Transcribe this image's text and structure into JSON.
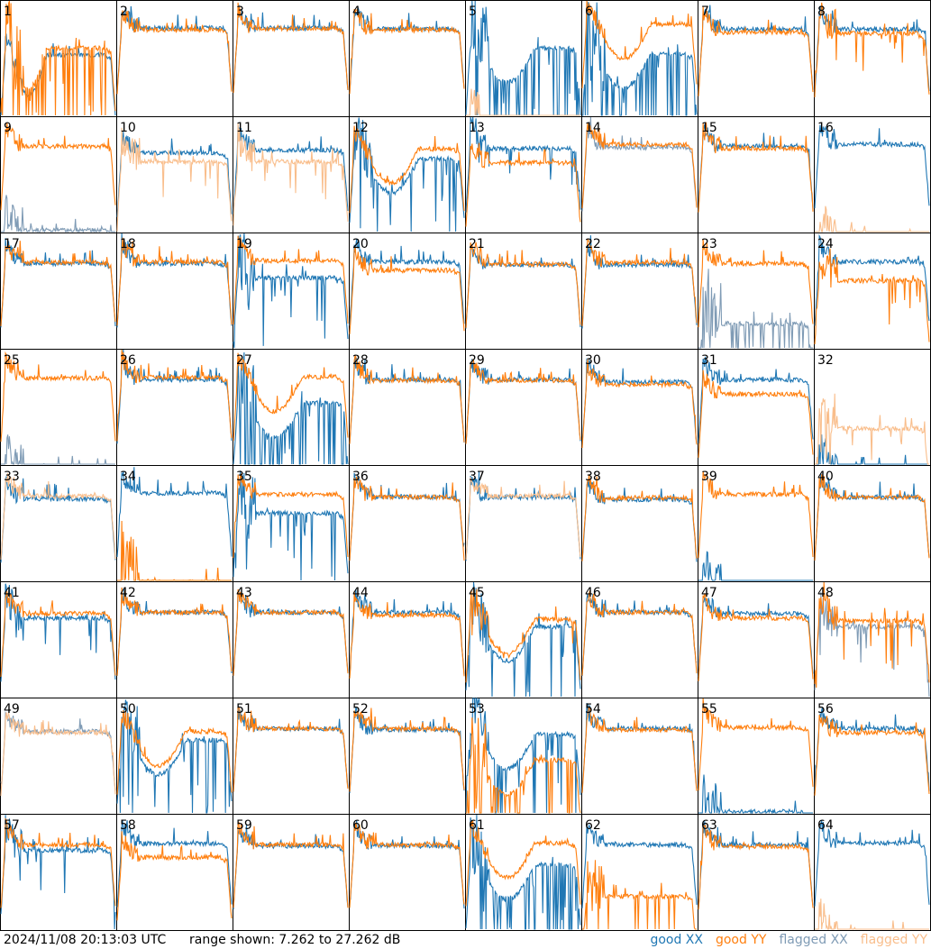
{
  "timestamp": "2024/11/08 20:13:03 UTC",
  "range_text": "range shown: 7.262 to 27.262 dB",
  "legend": {
    "good_xx": "good XX",
    "good_yy": "good YY",
    "flagged_xx": "flagged XX",
    "flagged_yy": "flagged YY"
  },
  "colors": {
    "good_xx": "#1f77b4",
    "good_yy": "#ff7f0e",
    "flagged_xx": "#7f9bb5",
    "flagged_yy": "#f9be8c"
  },
  "chart_data": {
    "type": "line",
    "grid": "8x8 small multiples",
    "ylim": [
      7.262,
      27.262
    ],
    "yunit": "dB",
    "series_names": [
      "good XX",
      "good YY",
      "flagged XX",
      "flagged YY"
    ],
    "panels": [
      {
        "label": "1",
        "shape": "a",
        "x": {
          "s": "good",
          "b": 18.8,
          "f": 0
        },
        "y": {
          "s": "good",
          "b": 20.0,
          "f": 3
        }
      },
      {
        "label": "2",
        "shape": "n",
        "x": {
          "s": "good",
          "b": 23.5,
          "f": 0
        },
        "y": {
          "s": "good",
          "b": 23.2,
          "f": 0
        }
      },
      {
        "label": "3",
        "shape": "n",
        "x": {
          "s": "good",
          "b": 23.5,
          "f": 0
        },
        "y": {
          "s": "good",
          "b": 23.4,
          "f": 0
        }
      },
      {
        "label": "4",
        "shape": "n",
        "x": {
          "s": "good",
          "b": 23.4,
          "f": 0
        },
        "y": {
          "s": "good",
          "b": 23.2,
          "f": 0
        }
      },
      {
        "label": "5",
        "shape": "b",
        "x": {
          "s": "good",
          "b": 20.0,
          "f": 4
        },
        "y": {
          "s": "flagged",
          "b": 7.8,
          "f": 1
        }
      },
      {
        "label": "6",
        "shape": "b",
        "x": {
          "s": "good",
          "b": 19.0,
          "f": 4
        },
        "y": {
          "s": "good",
          "b": 24.2,
          "f": 0
        }
      },
      {
        "label": "7",
        "shape": "n",
        "x": {
          "s": "good",
          "b": 23.3,
          "f": 0
        },
        "y": {
          "s": "good",
          "b": 22.8,
          "f": 0
        }
      },
      {
        "label": "8",
        "shape": "n",
        "x": {
          "s": "good",
          "b": 23.3,
          "f": 0
        },
        "y": {
          "s": "good",
          "b": 22.6,
          "f": 1
        }
      },
      {
        "label": "9",
        "shape": "n",
        "x": {
          "s": "flagged",
          "b": 8.5,
          "f": 1
        },
        "y": {
          "s": "good",
          "b": 23.2,
          "f": 0
        }
      },
      {
        "label": "10",
        "shape": "n",
        "x": {
          "s": "good",
          "b": 22.0,
          "f": 0
        },
        "y": {
          "s": "flagged",
          "b": 20.5,
          "f": 1
        }
      },
      {
        "label": "11",
        "shape": "n",
        "x": {
          "s": "good",
          "b": 22.5,
          "f": 0
        },
        "y": {
          "s": "flagged",
          "b": 20.5,
          "f": 1
        }
      },
      {
        "label": "12",
        "shape": "b",
        "x": {
          "s": "good",
          "b": 21.0,
          "f": 2
        },
        "y": {
          "s": "good",
          "b": 22.7,
          "f": 0
        }
      },
      {
        "label": "13",
        "shape": "n",
        "x": {
          "s": "good",
          "b": 22.8,
          "f": 1
        },
        "y": {
          "s": "good",
          "b": 20.3,
          "f": 0
        }
      },
      {
        "label": "14",
        "shape": "n",
        "x": {
          "s": "flagged",
          "b": 23.0,
          "f": 0
        },
        "y": {
          "s": "good",
          "b": 23.5,
          "f": 0
        }
      },
      {
        "label": "15",
        "shape": "n",
        "x": {
          "s": "good",
          "b": 23.2,
          "f": 0
        },
        "y": {
          "s": "good",
          "b": 22.8,
          "f": 0
        }
      },
      {
        "label": "16",
        "shape": "n",
        "x": {
          "s": "good",
          "b": 23.5,
          "f": 0
        },
        "y": {
          "s": "flagged",
          "b": 7.4,
          "f": 1
        }
      },
      {
        "label": "17",
        "shape": "n",
        "x": {
          "s": "good",
          "b": 23.0,
          "f": 0
        },
        "y": {
          "s": "good",
          "b": 23.2,
          "f": 0
        }
      },
      {
        "label": "18",
        "shape": "n",
        "x": {
          "s": "good",
          "b": 23.0,
          "f": 0
        },
        "y": {
          "s": "good",
          "b": 23.3,
          "f": 0
        }
      },
      {
        "label": "19",
        "shape": "n",
        "x": {
          "s": "good",
          "b": 20.5,
          "f": 2
        },
        "y": {
          "s": "good",
          "b": 23.5,
          "f": 0
        }
      },
      {
        "label": "20",
        "shape": "n",
        "x": {
          "s": "good",
          "b": 23.3,
          "f": 0
        },
        "y": {
          "s": "good",
          "b": 21.8,
          "f": 0
        }
      },
      {
        "label": "21",
        "shape": "n",
        "x": {
          "s": "good",
          "b": 22.8,
          "f": 0
        },
        "y": {
          "s": "good",
          "b": 22.9,
          "f": 0
        }
      },
      {
        "label": "22",
        "shape": "n",
        "x": {
          "s": "good",
          "b": 22.8,
          "f": 0
        },
        "y": {
          "s": "good",
          "b": 23.2,
          "f": 0
        }
      },
      {
        "label": "23",
        "shape": "n",
        "x": {
          "s": "flagged",
          "b": 12.5,
          "f": 3
        },
        "y": {
          "s": "good",
          "b": 23.0,
          "f": 0
        }
      },
      {
        "label": "24",
        "shape": "n",
        "x": {
          "s": "good",
          "b": 23.3,
          "f": 0
        },
        "y": {
          "s": "good",
          "b": 20.0,
          "f": 1
        }
      },
      {
        "label": "25",
        "shape": "n",
        "x": {
          "s": "flagged",
          "b": 7.6,
          "f": 1
        },
        "y": {
          "s": "good",
          "b": 23.3,
          "f": 0
        }
      },
      {
        "label": "26",
        "shape": "n",
        "x": {
          "s": "good",
          "b": 23.0,
          "f": 0
        },
        "y": {
          "s": "good",
          "b": 23.4,
          "f": 0
        }
      },
      {
        "label": "27",
        "shape": "b",
        "x": {
          "s": "good",
          "b": 19.0,
          "f": 4
        },
        "y": {
          "s": "good",
          "b": 23.5,
          "f": 0
        }
      },
      {
        "label": "28",
        "shape": "n",
        "x": {
          "s": "good",
          "b": 23.0,
          "f": 0
        },
        "y": {
          "s": "good",
          "b": 22.9,
          "f": 0
        }
      },
      {
        "label": "29",
        "shape": "n",
        "x": {
          "s": "good",
          "b": 23.0,
          "f": 0
        },
        "y": {
          "s": "good",
          "b": 22.9,
          "f": 0
        }
      },
      {
        "label": "30",
        "shape": "n",
        "x": {
          "s": "good",
          "b": 22.6,
          "f": 0
        },
        "y": {
          "s": "good",
          "b": 22.2,
          "f": 0
        }
      },
      {
        "label": "31",
        "shape": "n",
        "x": {
          "s": "good",
          "b": 23.0,
          "f": 0
        },
        "y": {
          "s": "good",
          "b": 20.5,
          "f": 0
        }
      },
      {
        "label": "32",
        "shape": "n",
        "x": {
          "s": "good",
          "b": 7.6,
          "f": 1
        },
        "y": {
          "s": "flagged",
          "b": 14.5,
          "f": 1
        }
      },
      {
        "label": "33",
        "shape": "n",
        "x": {
          "s": "good",
          "b": 22.5,
          "f": 0
        },
        "y": {
          "s": "flagged",
          "b": 23.0,
          "f": 0
        }
      },
      {
        "label": "34",
        "shape": "n",
        "x": {
          "s": "good",
          "b": 23.5,
          "f": 0
        },
        "y": {
          "s": "good",
          "b": 8.0,
          "f": 3
        }
      },
      {
        "label": "35",
        "shape": "n",
        "x": {
          "s": "good",
          "b": 20.0,
          "f": 2
        },
        "y": {
          "s": "good",
          "b": 23.3,
          "f": 0
        }
      },
      {
        "label": "36",
        "shape": "n",
        "x": {
          "s": "good",
          "b": 22.8,
          "f": 0
        },
        "y": {
          "s": "good",
          "b": 22.8,
          "f": 0
        }
      },
      {
        "label": "37",
        "shape": "n",
        "x": {
          "s": "good",
          "b": 22.8,
          "f": 0
        },
        "y": {
          "s": "flagged",
          "b": 23.0,
          "f": 0
        }
      },
      {
        "label": "38",
        "shape": "n",
        "x": {
          "s": "good",
          "b": 22.4,
          "f": 0
        },
        "y": {
          "s": "good",
          "b": 22.7,
          "f": 0
        }
      },
      {
        "label": "39",
        "shape": "n",
        "x": {
          "s": "good",
          "b": 7.6,
          "f": 1
        },
        "y": {
          "s": "good",
          "b": 23.3,
          "f": 0
        }
      },
      {
        "label": "40",
        "shape": "n",
        "x": {
          "s": "good",
          "b": 22.8,
          "f": 0
        },
        "y": {
          "s": "good",
          "b": 22.8,
          "f": 0
        }
      },
      {
        "label": "41",
        "shape": "n",
        "x": {
          "s": "good",
          "b": 22.0,
          "f": 1
        },
        "y": {
          "s": "good",
          "b": 22.8,
          "f": 0
        }
      },
      {
        "label": "42",
        "shape": "n",
        "x": {
          "s": "good",
          "b": 23.0,
          "f": 0
        },
        "y": {
          "s": "good",
          "b": 23.0,
          "f": 0
        }
      },
      {
        "label": "43",
        "shape": "n",
        "x": {
          "s": "good",
          "b": 23.0,
          "f": 0
        },
        "y": {
          "s": "good",
          "b": 23.0,
          "f": 0
        }
      },
      {
        "label": "44",
        "shape": "n",
        "x": {
          "s": "good",
          "b": 23.0,
          "f": 0
        },
        "y": {
          "s": "good",
          "b": 22.5,
          "f": 0
        }
      },
      {
        "label": "45",
        "shape": "b",
        "x": {
          "s": "good",
          "b": 20.5,
          "f": 2
        },
        "y": {
          "s": "good",
          "b": 21.8,
          "f": 1
        }
      },
      {
        "label": "46",
        "shape": "n",
        "x": {
          "s": "good",
          "b": 23.0,
          "f": 0
        },
        "y": {
          "s": "good",
          "b": 23.0,
          "f": 0
        }
      },
      {
        "label": "47",
        "shape": "n",
        "x": {
          "s": "good",
          "b": 22.8,
          "f": 0
        },
        "y": {
          "s": "good",
          "b": 22.0,
          "f": 0
        }
      },
      {
        "label": "48",
        "shape": "n",
        "x": {
          "s": "flagged",
          "b": 20.5,
          "f": 1
        },
        "y": {
          "s": "good",
          "b": 21.5,
          "f": 1
        }
      },
      {
        "label": "49",
        "shape": "n",
        "x": {
          "s": "flagged",
          "b": 22.5,
          "f": 0
        },
        "y": {
          "s": "flagged",
          "b": 22.3,
          "f": 0
        }
      },
      {
        "label": "50",
        "shape": "b",
        "x": {
          "s": "good",
          "b": 21.0,
          "f": 2
        },
        "y": {
          "s": "good",
          "b": 22.5,
          "f": 0
        }
      },
      {
        "label": "51",
        "shape": "n",
        "x": {
          "s": "good",
          "b": 23.0,
          "f": 0
        },
        "y": {
          "s": "good",
          "b": 23.0,
          "f": 0
        }
      },
      {
        "label": "52",
        "shape": "n",
        "x": {
          "s": "good",
          "b": 22.8,
          "f": 0
        },
        "y": {
          "s": "good",
          "b": 23.0,
          "f": 0
        }
      },
      {
        "label": "53",
        "shape": "b",
        "x": {
          "s": "good",
          "b": 22.0,
          "f": 3
        },
        "y": {
          "s": "good",
          "b": 17.5,
          "f": 3
        }
      },
      {
        "label": "54",
        "shape": "n",
        "x": {
          "s": "good",
          "b": 23.0,
          "f": 0
        },
        "y": {
          "s": "good",
          "b": 22.8,
          "f": 0
        }
      },
      {
        "label": "55",
        "shape": "n",
        "x": {
          "s": "good",
          "b": 8.5,
          "f": 2
        },
        "y": {
          "s": "good",
          "b": 23.2,
          "f": 0
        }
      },
      {
        "label": "56",
        "shape": "n",
        "x": {
          "s": "good",
          "b": 23.0,
          "f": 0
        },
        "y": {
          "s": "good",
          "b": 22.3,
          "f": 0
        }
      },
      {
        "label": "57",
        "shape": "n",
        "x": {
          "s": "good",
          "b": 22.0,
          "f": 1
        },
        "y": {
          "s": "good",
          "b": 23.0,
          "f": 0
        }
      },
      {
        "label": "58",
        "shape": "n",
        "x": {
          "s": "good",
          "b": 23.2,
          "f": 0
        },
        "y": {
          "s": "good",
          "b": 20.8,
          "f": 0
        }
      },
      {
        "label": "59",
        "shape": "n",
        "x": {
          "s": "good",
          "b": 22.8,
          "f": 0
        },
        "y": {
          "s": "good",
          "b": 23.0,
          "f": 0
        }
      },
      {
        "label": "60",
        "shape": "n",
        "x": {
          "s": "good",
          "b": 22.8,
          "f": 0
        },
        "y": {
          "s": "good",
          "b": 23.0,
          "f": 0
        }
      },
      {
        "label": "61",
        "shape": "b",
        "x": {
          "s": "good",
          "b": 19.5,
          "f": 4
        },
        "y": {
          "s": "good",
          "b": 23.3,
          "f": 0
        }
      },
      {
        "label": "62",
        "shape": "n",
        "x": {
          "s": "good",
          "b": 23.0,
          "f": 0
        },
        "y": {
          "s": "good",
          "b": 14.0,
          "f": 2
        }
      },
      {
        "label": "63",
        "shape": "n",
        "x": {
          "s": "good",
          "b": 23.0,
          "f": 0
        },
        "y": {
          "s": "good",
          "b": 22.7,
          "f": 0
        }
      },
      {
        "label": "64",
        "shape": "n",
        "x": {
          "s": "good",
          "b": 23.3,
          "f": 0
        },
        "y": {
          "s": "flagged",
          "b": 7.5,
          "f": 1
        }
      }
    ]
  }
}
